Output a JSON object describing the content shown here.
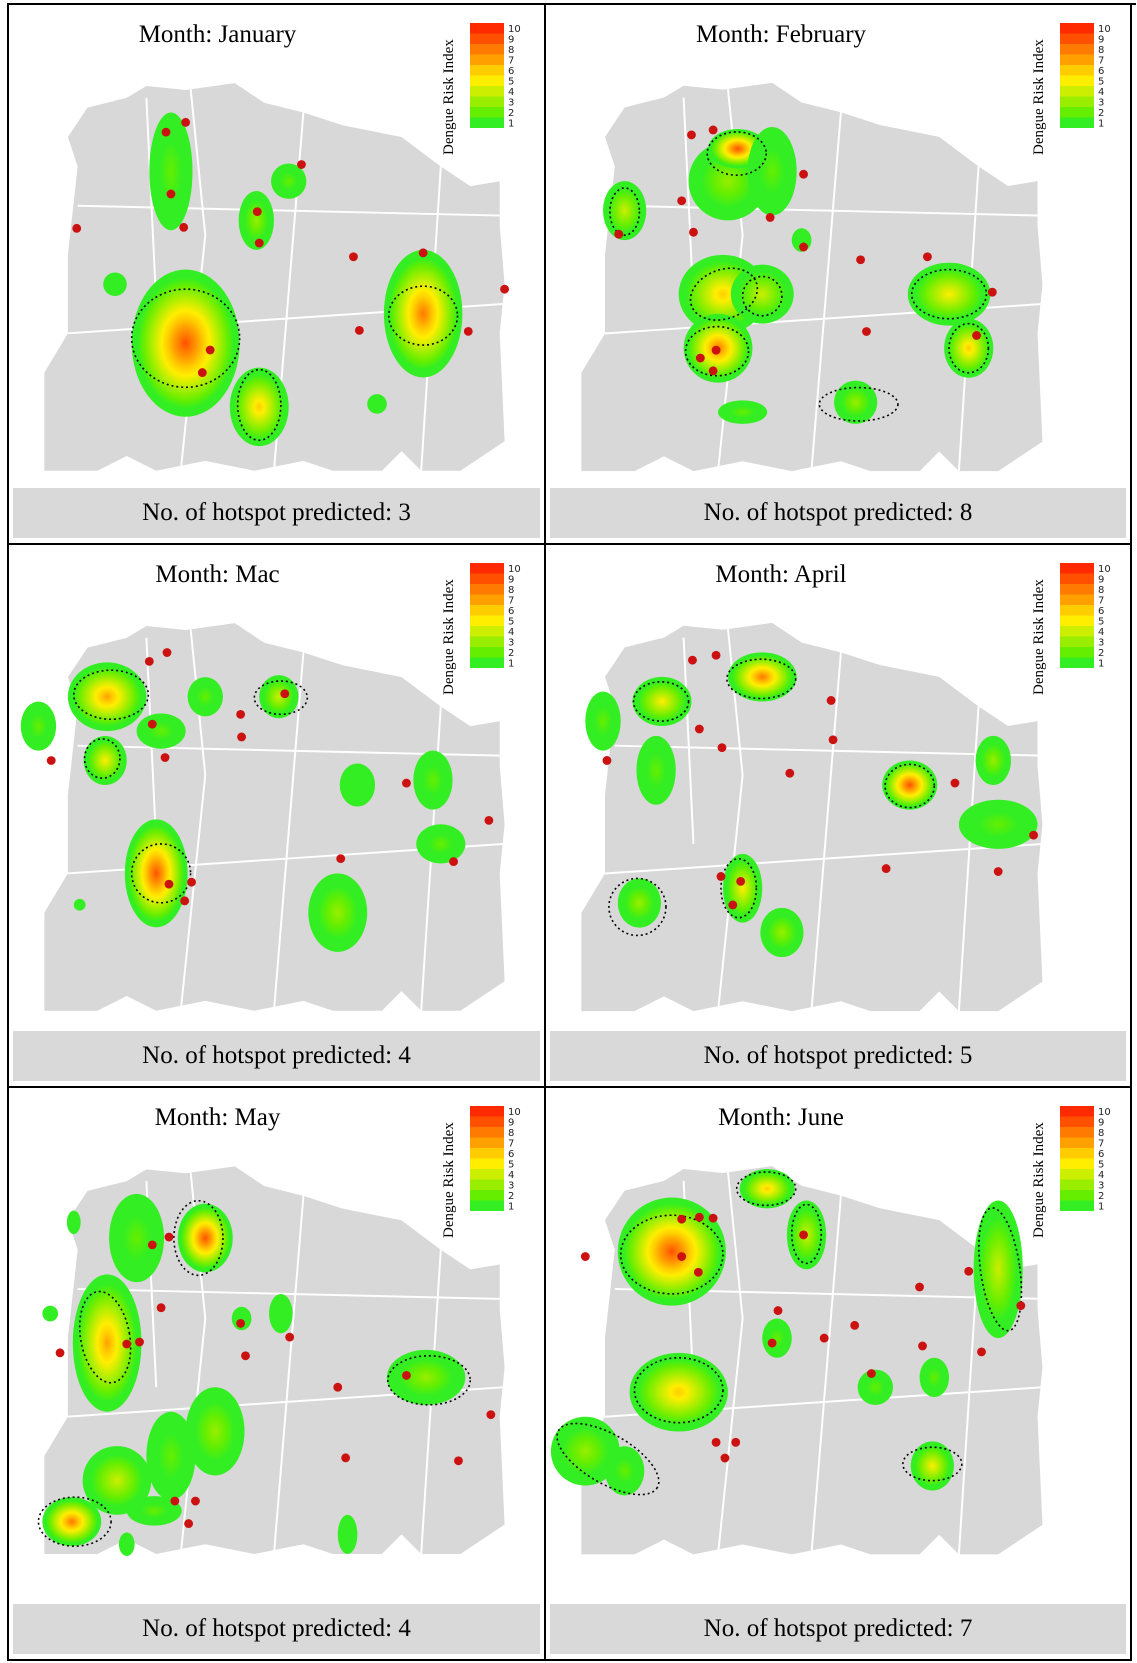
{
  "legend": {
    "label": "Dengue Risk Index",
    "ticks": [
      "10",
      "9",
      "8",
      "7",
      "6",
      "5",
      "4",
      "3",
      "2",
      "1"
    ],
    "colors": [
      "#ff2a00",
      "#ff5000",
      "#ff7a00",
      "#ffa000",
      "#ffcc00",
      "#ffee00",
      "#ccee00",
      "#99ee00",
      "#66ee00",
      "#33ee22"
    ]
  },
  "colors": {
    "land": "#d8d8d8",
    "road": "#ffffff",
    "case_point": "#cc1111",
    "hotspot_outline": "#000000"
  },
  "panels": [
    {
      "title": "Month: January",
      "footer": "No. of hotspot predicted: 3"
    },
    {
      "title": "Month: February",
      "footer": "No. of hotspot predicted: 8"
    },
    {
      "title": "Month: Mac",
      "footer": "No. of hotspot predicted: 4"
    },
    {
      "title": "Month: April",
      "footer": "No. of hotspot predicted: 5"
    },
    {
      "title": "Month: May",
      "footer": "No. of hotspot predicted: 4"
    },
    {
      "title": "Month: June",
      "footer": "No. of hotspot predicted: 7"
    }
  ]
}
